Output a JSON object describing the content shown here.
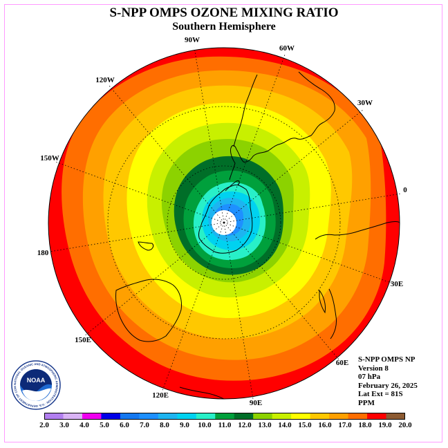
{
  "header": {
    "title": "S-NPP OMPS OZONE MIXING RATIO",
    "subtitle": "Southern Hemisphere"
  },
  "longitude_labels": [
    "90W",
    "60W",
    "30W",
    "0",
    "30E",
    "60E",
    "90E",
    "120E",
    "150E",
    "180",
    "150W",
    "120W"
  ],
  "info": {
    "product": "S-NPP OMPS NP",
    "version": "Version 8",
    "pressure": "07 hPa",
    "date": "February 26, 2025",
    "lat_ext": "Lat Ext = 81S",
    "units": "PPM"
  },
  "logo": {
    "text": "NOAA",
    "ring_text": "NATIONAL OCEANIC AND ATMOSPHERIC ADMINISTRATION · U.S. DEPARTMENT OF COMMERCE"
  },
  "colorbar": {
    "labels": [
      "2.0",
      "3.0",
      "4.0",
      "5.0",
      "6.0",
      "7.0",
      "8.0",
      "9.0",
      "10.0",
      "11.0",
      "12.0",
      "13.0",
      "14.0",
      "15.0",
      "16.0",
      "17.0",
      "18.0",
      "19.0",
      "20.0"
    ],
    "colors": [
      "#b27ff0",
      "#d9b3f5",
      "#f000f0",
      "#0000e8",
      "#1478f0",
      "#1e90ff",
      "#1eb4f0",
      "#00d2f0",
      "#28f0c8",
      "#00a03c",
      "#006e28",
      "#8cd200",
      "#c8f000",
      "#ffff00",
      "#ffc800",
      "#ffa000",
      "#ff6e00",
      "#ff0000",
      "#8c5a32"
    ]
  },
  "chart_data": {
    "type": "polar-contour-map",
    "projection": "south polar stereographic",
    "variable": "ozone mixing ratio",
    "units": "PPM",
    "level_hPa": 7,
    "date": "February 26, 2025",
    "contour_levels": [
      2,
      3,
      4,
      5,
      6,
      7,
      8,
      9,
      10,
      11,
      12,
      13,
      14,
      15,
      16,
      17,
      18,
      19,
      20
    ],
    "observed_range_approx": [
      6,
      19
    ]
  }
}
